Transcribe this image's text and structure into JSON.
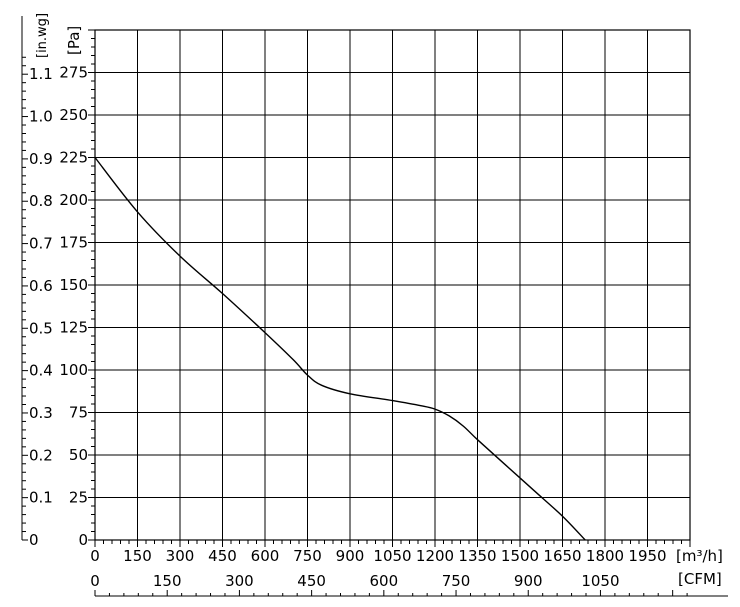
{
  "chart_data": {
    "type": "line",
    "title": "",
    "x_unit_primary": "[m³/h]",
    "x_unit_secondary": "[CFM]",
    "y_unit_pa": "[Pa]",
    "y_unit_inwg": "[in.wg]",
    "xlim": [
      0,
      2100
    ],
    "ylim": [
      0,
      300
    ],
    "grid": true,
    "x_ticks_m3h": [
      "0",
      "150",
      "300",
      "450",
      "600",
      "750",
      "900",
      "1050",
      "1200",
      "1350",
      "1500",
      "1650",
      "1800",
      "1950"
    ],
    "x_ticks_m3h_values": [
      0,
      150,
      300,
      450,
      600,
      750,
      900,
      1050,
      1200,
      1350,
      1500,
      1650,
      1800,
      1950
    ],
    "x_ticks_cfm": [
      "0",
      "150",
      "300",
      "450",
      "600",
      "750",
      "900",
      "1050"
    ],
    "x_ticks_cfm_values": [
      0,
      150,
      300,
      450,
      600,
      750,
      900,
      1050
    ],
    "y_ticks_pa": [
      "0",
      "25",
      "50",
      "75",
      "100",
      "125",
      "150",
      "175",
      "200",
      "225",
      "250",
      "275"
    ],
    "y_ticks_pa_values": [
      0,
      25,
      50,
      75,
      100,
      125,
      150,
      175,
      200,
      225,
      250,
      275
    ],
    "y_ticks_inwg": [
      "0",
      "0.1",
      "0.2",
      "0.3",
      "0.4",
      "0.5",
      "0.6",
      "0.7",
      "0.8",
      "0.9",
      "1.0",
      "1.1"
    ],
    "y_ticks_inwg_values": [
      0,
      0.1,
      0.2,
      0.3,
      0.4,
      0.5,
      0.6,
      0.7,
      0.8,
      0.9,
      1.0,
      1.1
    ],
    "series": [
      {
        "x": [
          0,
          150,
          300,
          450,
          600,
          700,
          750,
          800,
          900,
          1050,
          1150,
          1200,
          1250,
          1300,
          1350,
          1450,
          1550,
          1650,
          1730
        ],
        "y": [
          225,
          193,
          167,
          145,
          122,
          106,
          97,
          91,
          86,
          82,
          79,
          77,
          73,
          67,
          59,
          44,
          29,
          14,
          0
        ]
      }
    ]
  }
}
